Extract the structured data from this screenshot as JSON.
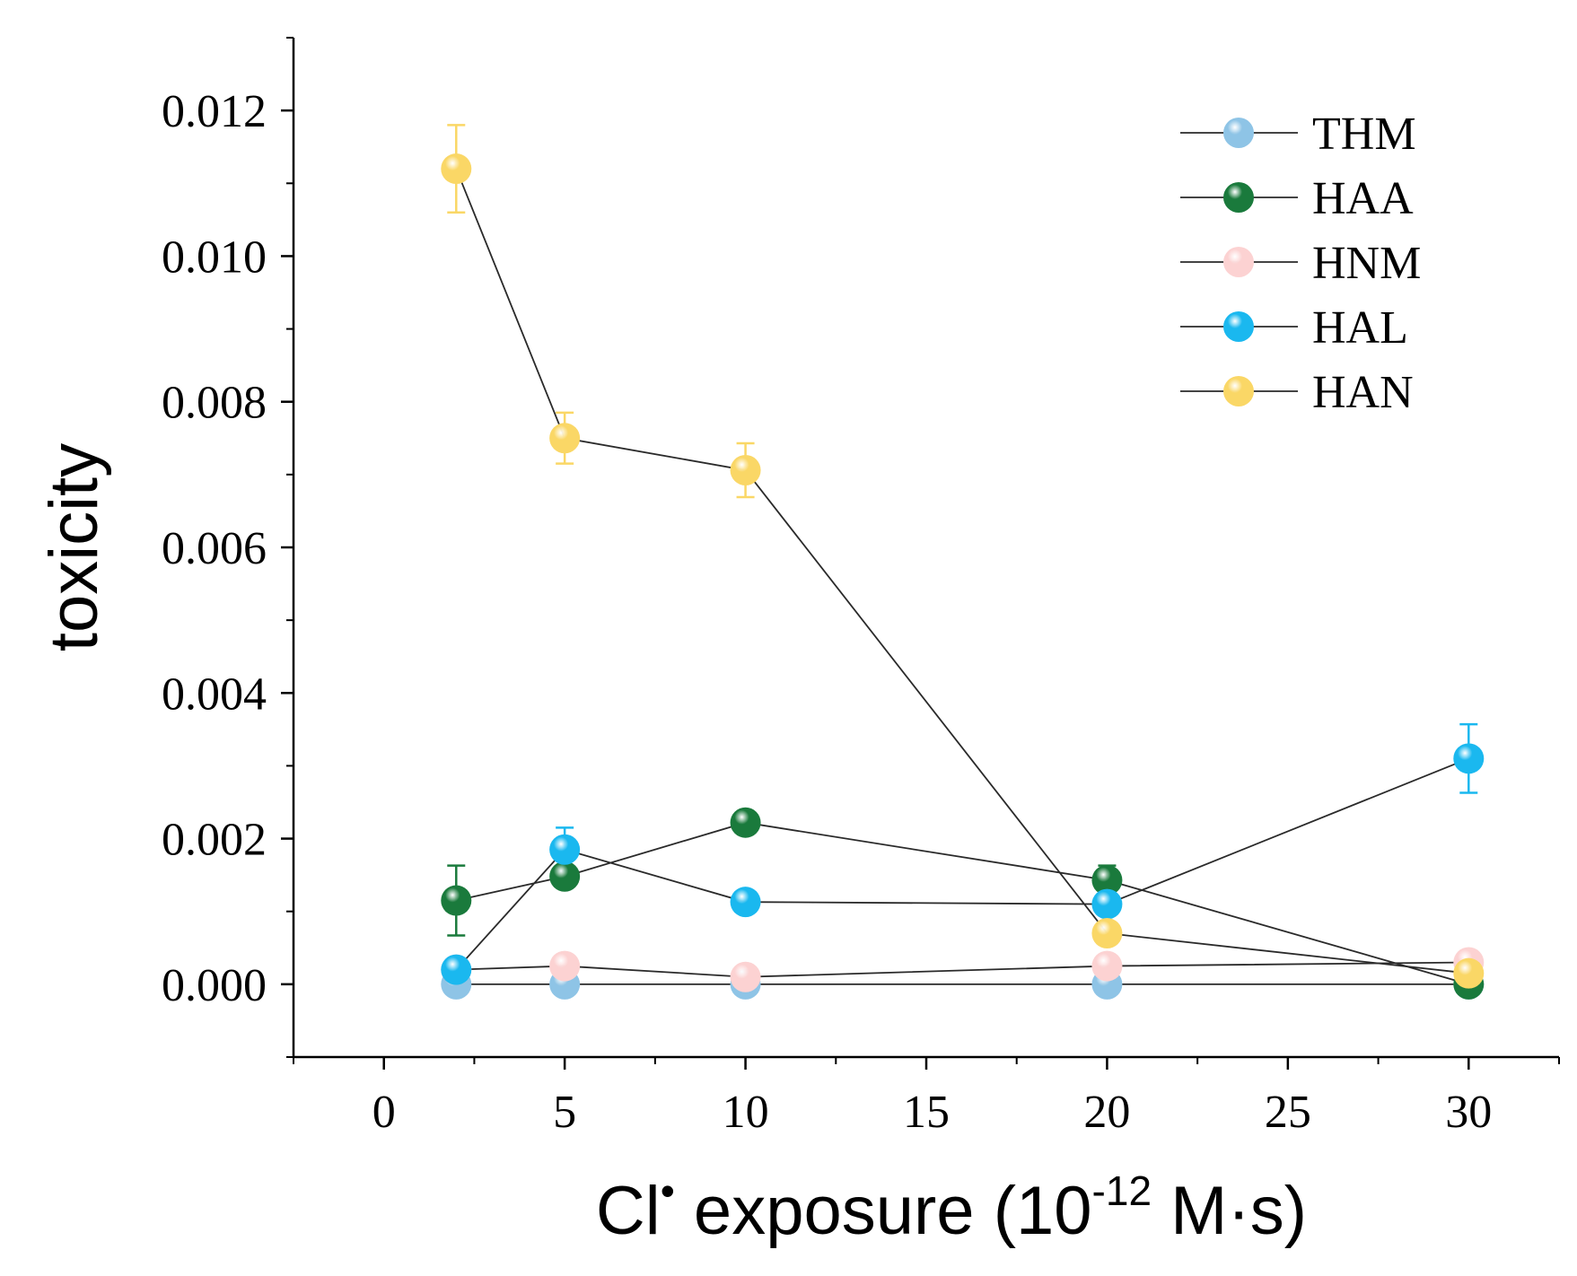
{
  "chart_data": {
    "type": "line",
    "title": "",
    "xlabel": {
      "prefix": "Cl",
      "sup1": "•",
      "middle": " exposure (10",
      "sup2": "-12",
      "suffix": " M·s)"
    },
    "ylabel": "toxicity",
    "xlim": [
      -2.5,
      32.5
    ],
    "ylim": [
      -0.001,
      0.013
    ],
    "x_ticks": [
      0,
      5,
      10,
      15,
      20,
      25,
      30
    ],
    "x_tick_labels": [
      "0",
      "5",
      "10",
      "15",
      "20",
      "25",
      "30"
    ],
    "y_ticks": [
      0.0,
      0.002,
      0.004,
      0.006,
      0.008,
      0.01,
      0.012
    ],
    "y_tick_labels": [
      "0.000",
      "0.002",
      "0.004",
      "0.006",
      "0.008",
      "0.010",
      "0.012"
    ],
    "grid": false,
    "legend_position": "top-right",
    "x": [
      2,
      5,
      10,
      20,
      30
    ],
    "series": [
      {
        "name": "THM",
        "color": "#8ec4e6",
        "values": [
          0.0,
          0.0,
          0.0,
          0.0,
          0.0
        ],
        "errors": [
          0,
          0,
          0,
          0,
          0
        ]
      },
      {
        "name": "HAA",
        "color": "#1a7a3c",
        "values": [
          0.00115,
          0.00148,
          0.00222,
          0.00143,
          0.0
        ],
        "errors": [
          0.00048,
          0,
          0,
          0.0002,
          0
        ]
      },
      {
        "name": "HNM",
        "color": "#fcd2d2",
        "values": [
          0.0002,
          0.00025,
          0.0001,
          0.00025,
          0.0003
        ],
        "errors": [
          0,
          0,
          0,
          0,
          0
        ]
      },
      {
        "name": "HAL",
        "color": "#1ab8ef",
        "values": [
          0.0002,
          0.00185,
          0.00113,
          0.0011,
          0.0031
        ],
        "errors": [
          0,
          0.0003,
          0,
          0,
          0.00047
        ]
      },
      {
        "name": "HAN",
        "color": "#fad766",
        "values": [
          0.0112,
          0.0075,
          0.00706,
          0.0007,
          0.00015
        ],
        "errors": [
          0.0006,
          0.00035,
          0.00037,
          0,
          0
        ]
      }
    ]
  }
}
